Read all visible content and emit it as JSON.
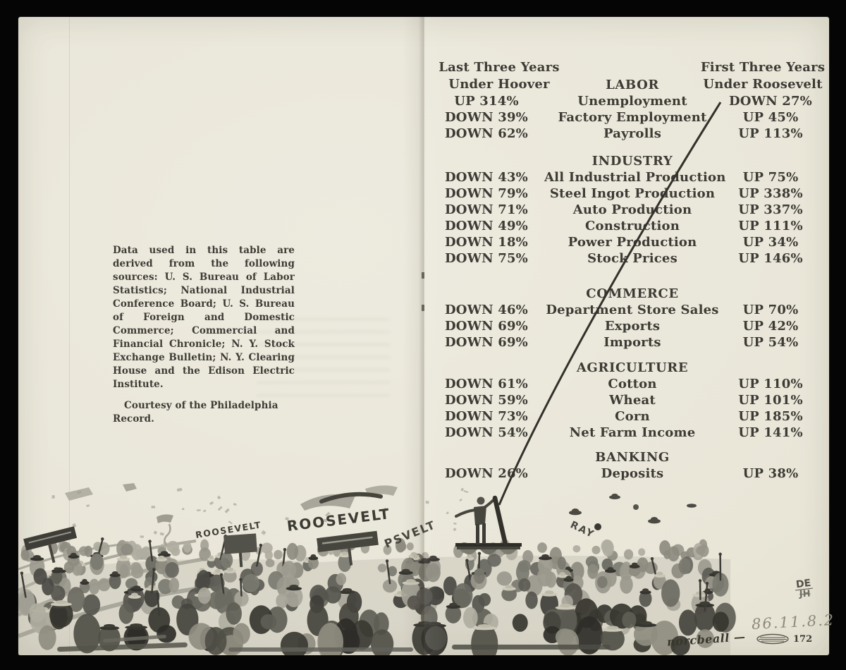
{
  "document": {
    "type": "booklet-spread-scan",
    "colors": {
      "backdrop": "#050505",
      "paper": "#e9e6d8",
      "ink": "#3d3b35",
      "pencil": "#8e897a"
    }
  },
  "left_page": {
    "note": "Data used in this table are derived from the following sources: U. S. Bureau of Labor Statistics; National Industrial Conference Board; U. S. Bureau of Foreign and Domestic Commerce; Commercial and Financial Chronicle; N. Y. Stock Exchange Bulletin; N. Y. Clearing House and the Edison Electric Institute.",
    "courtesy": "Courtesy of the Philadelphia Record."
  },
  "table": {
    "left_header": {
      "line1": "Last Three Years",
      "line2": "Under Hoover"
    },
    "right_header": {
      "line1": "First Three Years",
      "line2": "Under Roosevelt"
    },
    "sections": [
      {
        "title": "LABOR",
        "rows": [
          {
            "hoover": "UP 314%",
            "metric": "Unemployment",
            "roosevelt": "DOWN 27%"
          },
          {
            "hoover": "DOWN 39%",
            "metric": "Factory Employment",
            "roosevelt": "UP 45%"
          },
          {
            "hoover": "DOWN 62%",
            "metric": "Payrolls",
            "roosevelt": "UP 113%"
          }
        ]
      },
      {
        "title": "INDUSTRY",
        "rows": [
          {
            "hoover": "DOWN 43%",
            "metric": "All Industrial Production",
            "roosevelt": "UP 75%"
          },
          {
            "hoover": "DOWN 79%",
            "metric": "Steel Ingot Production",
            "roosevelt": "UP 338%"
          },
          {
            "hoover": "DOWN 71%",
            "metric": "Auto Production",
            "roosevelt": "UP 337%"
          },
          {
            "hoover": "DOWN 49%",
            "metric": "Construction",
            "roosevelt": "UP 111%"
          },
          {
            "hoover": "DOWN 18%",
            "metric": "Power Production",
            "roosevelt": "UP 34%"
          },
          {
            "hoover": "DOWN 75%",
            "metric": "Stock Prices",
            "roosevelt": "UP 146%"
          }
        ]
      },
      {
        "title": "COMMERCE",
        "rows": [
          {
            "hoover": "DOWN 46%",
            "metric": "Department Store Sales",
            "roosevelt": "UP 70%"
          },
          {
            "hoover": "DOWN 69%",
            "metric": "Exports",
            "roosevelt": "UP 42%"
          },
          {
            "hoover": "DOWN 69%",
            "metric": "Imports",
            "roosevelt": "UP 54%"
          }
        ]
      },
      {
        "title": "AGRICULTURE",
        "rows": [
          {
            "hoover": "DOWN 61%",
            "metric": "Cotton",
            "roosevelt": "UP 110%"
          },
          {
            "hoover": "DOWN 59%",
            "metric": "Wheat",
            "roosevelt": "UP 101%"
          },
          {
            "hoover": "DOWN 73%",
            "metric": "Corn",
            "roosevelt": "UP 185%"
          },
          {
            "hoover": "DOWN 54%",
            "metric": "Net Farm Income",
            "roosevelt": "UP 141%"
          }
        ]
      },
      {
        "title": "BANKING",
        "rows": [
          {
            "hoover": "DOWN 26%",
            "metric": "Deposits",
            "roosevelt": "UP 38%"
          }
        ]
      }
    ]
  },
  "illustration": {
    "banner_small": "ROOSEVELT",
    "banner_large": "ROOSEVELT",
    "banner_partial": "PSVELT",
    "hat_text": "RAY",
    "signature": "norcbeall —"
  },
  "annotations": {
    "de_mark": "DE",
    "de_scribble": "JH",
    "accession_number": "86.11.8.2",
    "page_number": "172"
  }
}
